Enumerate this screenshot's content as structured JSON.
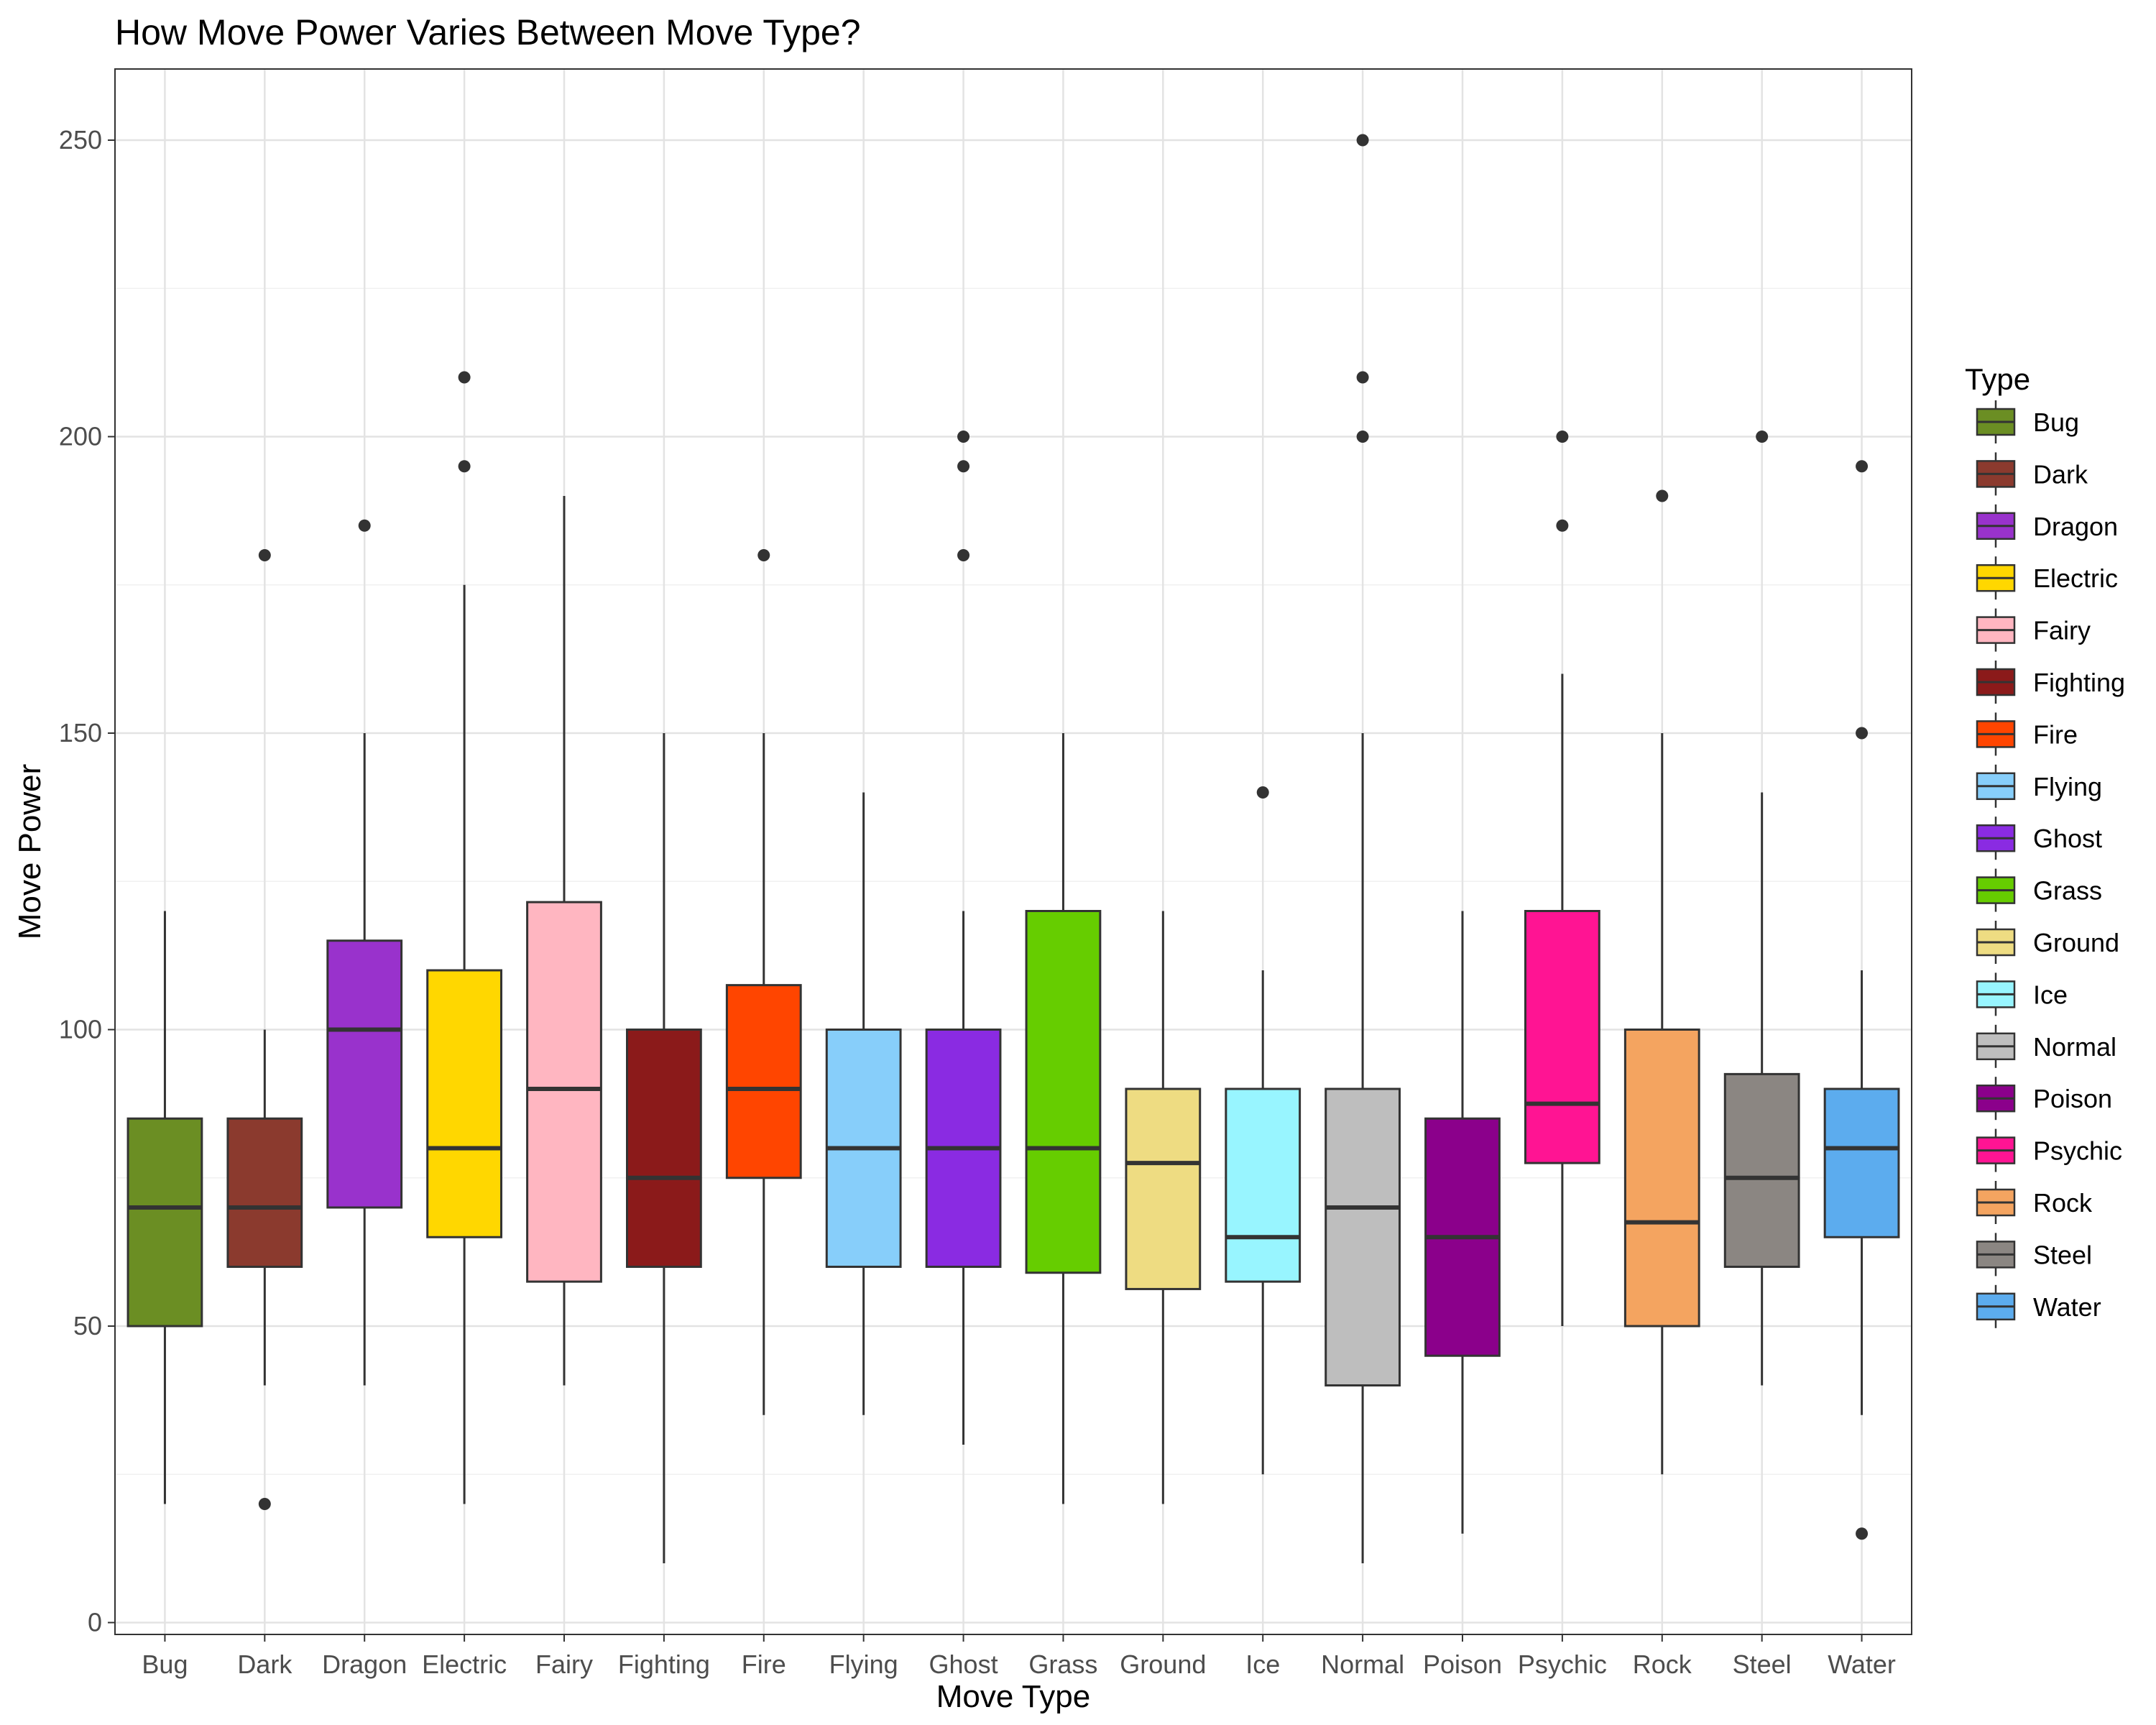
{
  "chart_data": {
    "type": "boxplot",
    "title": "How Move Power Varies Between Move Type?",
    "xlabel": "Move Type",
    "ylabel": "Move Power",
    "ylim": [
      -2,
      262
    ],
    "yticks": [
      0,
      50,
      100,
      150,
      200,
      250
    ],
    "grid": true,
    "legend": {
      "title": "Type",
      "position": "right"
    },
    "categories": [
      "Bug",
      "Dark",
      "Dragon",
      "Electric",
      "Fairy",
      "Fighting",
      "Fire",
      "Flying",
      "Ghost",
      "Grass",
      "Ground",
      "Ice",
      "Normal",
      "Poison",
      "Psychic",
      "Rock",
      "Steel",
      "Water"
    ],
    "series": [
      {
        "name": "Bug",
        "color": "#6B8E23",
        "min": 20,
        "q1": 50,
        "median": 70,
        "q3": 85,
        "max": 120,
        "outliers": []
      },
      {
        "name": "Dark",
        "color": "#8B3A2E",
        "min": 40,
        "q1": 60,
        "median": 70,
        "q3": 85,
        "max": 100,
        "outliers": [
          180,
          20
        ]
      },
      {
        "name": "Dragon",
        "color": "#9932CC",
        "min": 40,
        "q1": 70,
        "median": 100,
        "q3": 115,
        "max": 150,
        "outliers": [
          185
        ]
      },
      {
        "name": "Electric",
        "color": "#FFD700",
        "min": 20,
        "q1": 65,
        "median": 80,
        "q3": 110,
        "max": 175,
        "outliers": [
          210,
          195
        ]
      },
      {
        "name": "Fairy",
        "color": "#FFB6C1",
        "min": 40,
        "q1": 57.5,
        "median": 90,
        "q3": 121.5,
        "max": 190,
        "outliers": []
      },
      {
        "name": "Fighting",
        "color": "#8B1A1A",
        "min": 10,
        "q1": 60,
        "median": 75,
        "q3": 100,
        "max": 150,
        "outliers": []
      },
      {
        "name": "Fire",
        "color": "#FF4500",
        "min": 35,
        "q1": 75,
        "median": 90,
        "q3": 107.5,
        "max": 150,
        "outliers": [
          180
        ]
      },
      {
        "name": "Flying",
        "color": "#87CEFA",
        "min": 35,
        "q1": 60,
        "median": 80,
        "q3": 100,
        "max": 140,
        "outliers": []
      },
      {
        "name": "Ghost",
        "color": "#8A2BE2",
        "min": 30,
        "q1": 60,
        "median": 80,
        "q3": 100,
        "max": 120,
        "outliers": [
          200,
          195,
          180
        ]
      },
      {
        "name": "Grass",
        "color": "#66CD00",
        "min": 20,
        "q1": 59,
        "median": 80,
        "q3": 120,
        "max": 150,
        "outliers": []
      },
      {
        "name": "Ground",
        "color": "#EEDC82",
        "min": 20,
        "q1": 56.25,
        "median": 77.5,
        "q3": 90,
        "max": 120,
        "outliers": []
      },
      {
        "name": "Ice",
        "color": "#98F5FF",
        "min": 25,
        "q1": 57.5,
        "median": 65,
        "q3": 90,
        "max": 110,
        "outliers": [
          140
        ]
      },
      {
        "name": "Normal",
        "color": "#BEBEBE",
        "min": 10,
        "q1": 40,
        "median": 70,
        "q3": 90,
        "max": 150,
        "outliers": [
          250,
          210,
          200
        ]
      },
      {
        "name": "Poison",
        "color": "#8B008B",
        "min": 15,
        "q1": 45,
        "median": 65,
        "q3": 85,
        "max": 120,
        "outliers": []
      },
      {
        "name": "Psychic",
        "color": "#FF1493",
        "min": 50,
        "q1": 77.5,
        "median": 87.5,
        "q3": 120,
        "max": 160,
        "outliers": [
          200,
          185
        ]
      },
      {
        "name": "Rock",
        "color": "#F4A460",
        "min": 25,
        "q1": 50,
        "median": 67.5,
        "q3": 100,
        "max": 150,
        "outliers": [
          190
        ]
      },
      {
        "name": "Steel",
        "color": "#8B8682",
        "min": 40,
        "q1": 60,
        "median": 75,
        "q3": 92.5,
        "max": 140,
        "outliers": [
          200
        ]
      },
      {
        "name": "Water",
        "color": "#5CACEE",
        "min": 35,
        "q1": 65,
        "median": 80,
        "q3": 90,
        "max": 110,
        "outliers": [
          195,
          150,
          15
        ]
      }
    ]
  }
}
